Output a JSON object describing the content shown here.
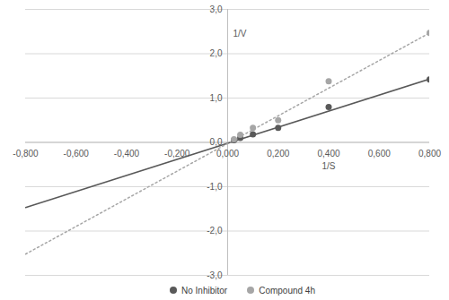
{
  "chart_data": {
    "type": "scatter",
    "xlabel": "1/S",
    "ylabel": "1/V",
    "xlim": [
      -0.8,
      0.8
    ],
    "ylim": [
      -3,
      3
    ],
    "xticks": [
      {
        "value": -0.8,
        "label": "-0,800"
      },
      {
        "value": -0.6,
        "label": "-0,600"
      },
      {
        "value": -0.4,
        "label": "-0,400"
      },
      {
        "value": -0.2,
        "label": "-0,200"
      },
      {
        "value": 0,
        "label": "0,000"
      },
      {
        "value": 0.2,
        "label": "0,200"
      },
      {
        "value": 0.4,
        "label": "0,400"
      },
      {
        "value": 0.6,
        "label": "0,600"
      },
      {
        "value": 0.8,
        "label": "0,800"
      }
    ],
    "yticks": [
      {
        "value": -3,
        "label": "-3,0"
      },
      {
        "value": -2,
        "label": "-2,0"
      },
      {
        "value": -1,
        "label": "-1,0"
      },
      {
        "value": 0,
        "label": "0,0"
      },
      {
        "value": 1,
        "label": "1,0"
      },
      {
        "value": 2,
        "label": "2,0"
      },
      {
        "value": 3,
        "label": "3,0"
      }
    ],
    "grid": true,
    "legend": "bottom",
    "series": [
      {
        "name": "No Inhibitor",
        "color": "#595959",
        "marker": "circle",
        "line_style": "solid",
        "x": [
          0.025,
          0.05,
          0.1,
          0.2,
          0.4,
          0.8
        ],
        "values": [
          0.05,
          0.1,
          0.18,
          0.33,
          0.8,
          1.42
        ],
        "trendline": {
          "x": [
            -0.8,
            0.8
          ],
          "values": [
            -1.47,
            1.43
          ]
        }
      },
      {
        "name": "Compound 4h",
        "color": "#a6a6a6",
        "marker": "circle",
        "line_style": "dotted",
        "x": [
          0.025,
          0.05,
          0.1,
          0.2,
          0.4,
          0.8
        ],
        "values": [
          0.07,
          0.17,
          0.33,
          0.5,
          1.38,
          2.47
        ],
        "trendline": {
          "x": [
            -0.8,
            0.8
          ],
          "values": [
            -2.52,
            2.47
          ]
        }
      }
    ]
  }
}
